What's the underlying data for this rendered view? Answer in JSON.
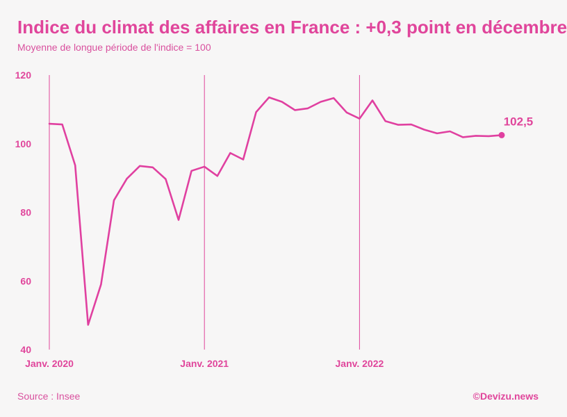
{
  "title": "Indice du climat des affaires en France : +0,3 point en décembre",
  "subtitle": "Moyenne de longue période de l'indice = 100",
  "source": "Source : Insee",
  "credit": "©Devizu.news",
  "colors": {
    "accent": "#e0459b",
    "line": "#e040a0",
    "background": "#f7f6f6"
  },
  "chart_data": {
    "type": "line",
    "title": "Indice du climat des affaires en France : +0,3 point en décembre",
    "subtitle": "Moyenne de longue période de l'indice = 100",
    "xlabel": "",
    "ylabel": "",
    "ylim": [
      40,
      120
    ],
    "yticks": [
      40,
      60,
      80,
      100,
      120
    ],
    "xticks": [
      {
        "label": "Janv. 2020",
        "x": "2020-01"
      },
      {
        "label": "Janv. 2021",
        "x": "2021-01"
      },
      {
        "label": "Janv. 2022",
        "x": "2022-01"
      }
    ],
    "grid": false,
    "x": [
      "2020-01",
      "2020-02",
      "2020-03",
      "2020-04",
      "2020-05",
      "2020-06",
      "2020-07",
      "2020-08",
      "2020-09",
      "2020-10",
      "2020-11",
      "2020-12",
      "2021-01",
      "2021-02",
      "2021-03",
      "2021-04",
      "2021-05",
      "2021-06",
      "2021-07",
      "2021-08",
      "2021-09",
      "2021-10",
      "2021-11",
      "2021-12",
      "2022-01",
      "2022-02",
      "2022-03",
      "2022-04",
      "2022-05",
      "2022-06",
      "2022-07",
      "2022-08",
      "2022-09",
      "2022-10",
      "2022-11",
      "2022-12"
    ],
    "series": [
      {
        "values": [
          105.8,
          105.6,
          93.7,
          47.2,
          59.0,
          83.5,
          89.8,
          93.5,
          93.1,
          89.7,
          77.8,
          92.1,
          93.3,
          90.6,
          97.3,
          95.4,
          109.2,
          113.5,
          112.2,
          109.8,
          110.3,
          112.2,
          113.3,
          109.1,
          107.3,
          112.6,
          106.6,
          105.5,
          105.6,
          104.1,
          103.0,
          103.6,
          101.9,
          102.3,
          102.2,
          102.5
        ]
      }
    ],
    "annotations": [
      {
        "x": "2022-12",
        "y": 102.5,
        "text": "102,5"
      }
    ]
  }
}
